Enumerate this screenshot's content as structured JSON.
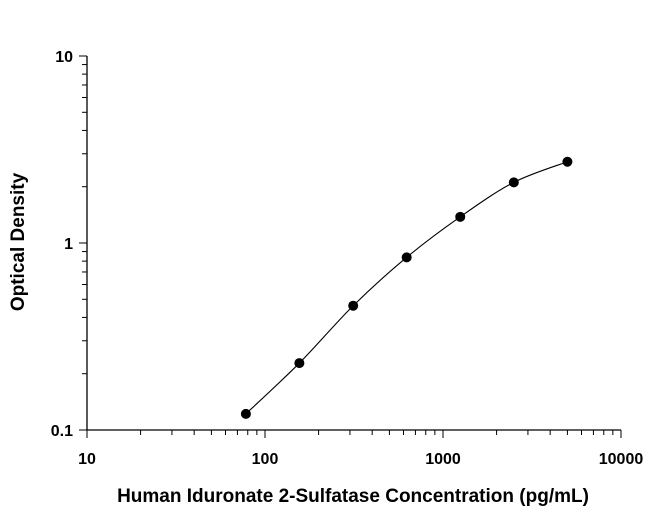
{
  "chart_data": {
    "type": "scatter",
    "title": "",
    "xlabel": "Human Iduronate 2-Sulfatase Concentration (pg/mL)",
    "ylabel": "Optical Density",
    "xscale": "log",
    "yscale": "log",
    "xlim": [
      10,
      10000
    ],
    "ylim": [
      0.1,
      10
    ],
    "x_ticks": [
      "10",
      "100",
      "1000",
      "10000"
    ],
    "y_ticks": [
      "0.1",
      "1",
      "10"
    ],
    "grid": false,
    "fit_curve": true,
    "series": [
      {
        "x": [
          78.1,
          156,
          313,
          625,
          1250,
          2500,
          5000
        ],
        "y": [
          0.122,
          0.228,
          0.462,
          0.838,
          1.38,
          2.11,
          2.72
        ]
      }
    ]
  }
}
